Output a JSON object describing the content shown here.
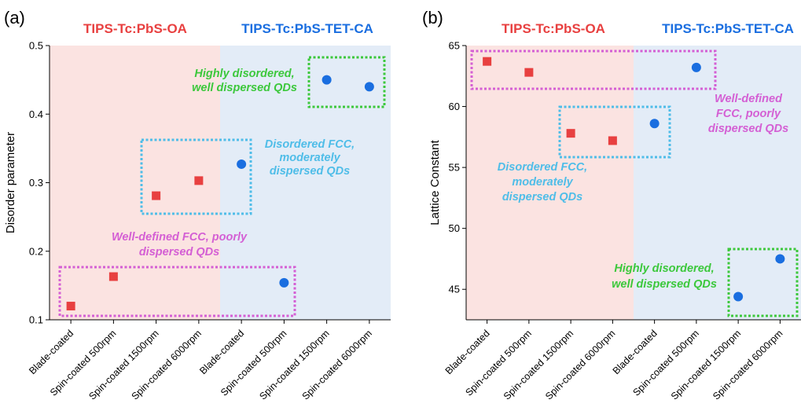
{
  "chart_data": [
    {
      "panel_label": "(a)",
      "type": "scatter",
      "categories": [
        "Blade-coated",
        "Spin-coated 500rpm",
        "Spin-coated 1500rpm",
        "Spin-coated 6000rpm",
        "Blade-coated",
        "Spin-coated 500rpm",
        "Spin-coated 1500rpm",
        "Spin-coated 6000rpm"
      ],
      "ylabel": "Disorder parameter",
      "ylim": [
        0.1,
        0.5
      ],
      "yticks": [
        "0.1",
        "0.2",
        "0.3",
        "0.4",
        "0.5"
      ],
      "groups": [
        {
          "name": "TIPS-Tc:PbS-OA",
          "color": "#e84040",
          "bg": "#fbe3e1",
          "marker": "square",
          "values": [
            0.12,
            0.163,
            0.281,
            0.303
          ]
        },
        {
          "name": "TIPS-Tc:PbS-TET-CA",
          "color": "#1a6ee0",
          "bg": "#e3ecf7",
          "marker": "circle",
          "values": [
            0.327,
            0.154,
            0.45,
            0.44
          ]
        }
      ],
      "annotations": [
        {
          "lines": [
            "Highly disordered,",
            "well dispersed QDs"
          ],
          "color": "#3cc83c"
        },
        {
          "lines": [
            "Disordered FCC,",
            "moderately",
            "dispersed QDs"
          ],
          "color": "#4fbde8"
        },
        {
          "lines": [
            "Well-defined FCC, poorly",
            "dispersed QDs"
          ],
          "color": "#d45fd4"
        }
      ]
    },
    {
      "panel_label": "(b)",
      "type": "scatter",
      "categories": [
        "Blade-coated",
        "Spin-coated 500rpm",
        "Spin-coated 1500rpm",
        "Spin-coated 6000rpm",
        "Blade-coated",
        "Spin-coated 500rpm",
        "Spin-coated 1500rpm",
        "Spin-coated 6000rpm"
      ],
      "ylabel": "Lattice Constant",
      "ylim": [
        42.5,
        65
      ],
      "yticks": [
        "45",
        "50",
        "55",
        "60",
        "65"
      ],
      "groups": [
        {
          "name": "TIPS-Tc:PbS-OA",
          "color": "#e84040",
          "bg": "#fbe3e1",
          "marker": "square",
          "values": [
            63.7,
            62.8,
            57.8,
            57.2
          ]
        },
        {
          "name": "TIPS-Tc:PbS-TET-CA",
          "color": "#1a6ee0",
          "bg": "#e3ecf7",
          "marker": "circle",
          "values": [
            58.6,
            63.2,
            44.4,
            47.5
          ]
        }
      ],
      "annotations": [
        {
          "lines": [
            "Well-defined",
            "FCC, poorly",
            "dispersed QDs"
          ],
          "color": "#d45fd4"
        },
        {
          "lines": [
            "Disordered FCC,",
            "moderately",
            "dispersed QDs"
          ],
          "color": "#4fbde8"
        },
        {
          "lines": [
            "Highly disordered,",
            "well dispersed QDs"
          ],
          "color": "#3cc83c"
        }
      ]
    }
  ]
}
